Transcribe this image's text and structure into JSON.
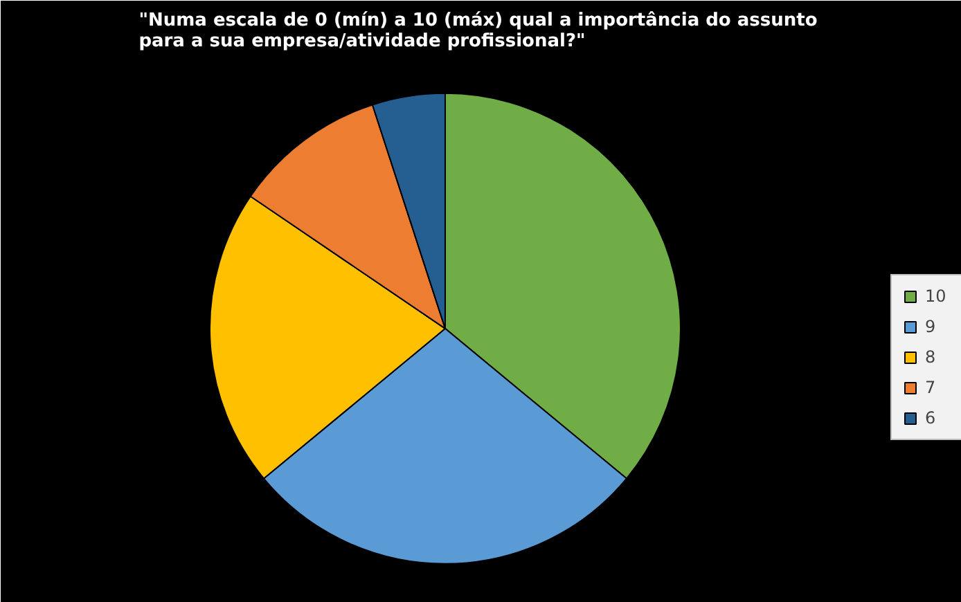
{
  "chart_data": {
    "type": "pie",
    "title": "\"Numa escala de  0 (mín) a 10 (máx) qual a importância do assunto para a sua empresa/atividade profissional?\"",
    "categories": [
      "10",
      "9",
      "8",
      "7",
      "6"
    ],
    "values": [
      36,
      28,
      20.5,
      10.5,
      5
    ],
    "colors": [
      "#70ad47",
      "#5b9bd5",
      "#ffc000",
      "#ed7d31",
      "#255e91"
    ],
    "legend": "right"
  }
}
